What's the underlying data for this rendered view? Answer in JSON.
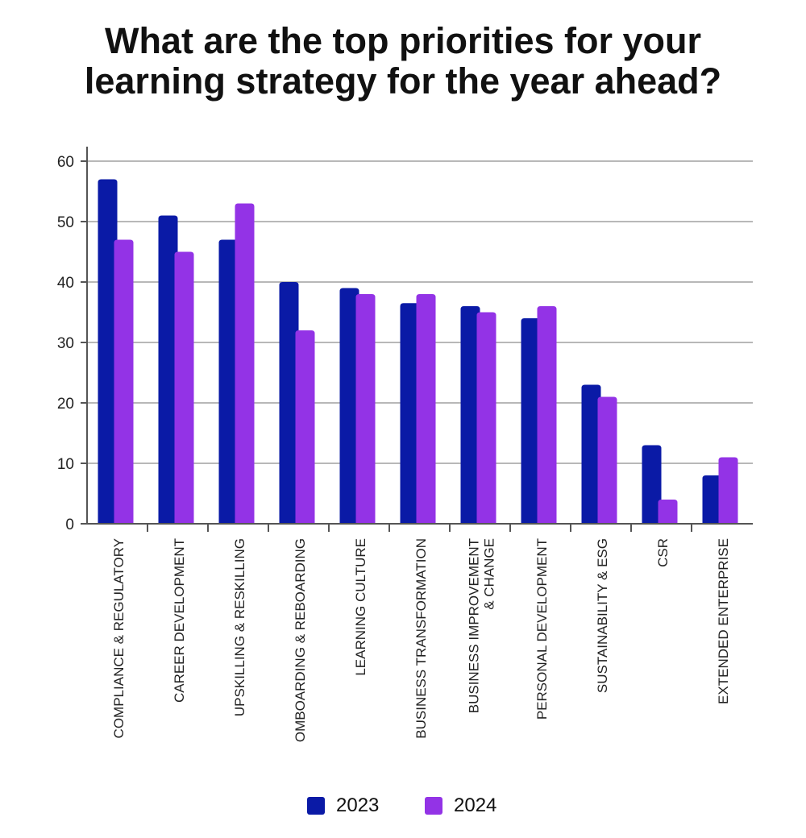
{
  "chart_data": {
    "type": "bar",
    "title": [
      "What are the top priorities for your",
      "learning strategy for the year ahead?"
    ],
    "xlabel": "",
    "ylabel": "",
    "ylim": [
      0,
      60
    ],
    "yticks": [
      0,
      10,
      20,
      30,
      40,
      50,
      60
    ],
    "grid": true,
    "legend_position": "bottom-center",
    "categories": [
      [
        "COMPLIANCE & REGULATORY"
      ],
      [
        "CAREER DEVELOPMENT"
      ],
      [
        "UPSKILLING & RESKILLING"
      ],
      [
        "OMBOARDING & REBOARDING"
      ],
      [
        "LEARNING CULTURE"
      ],
      [
        "BUSINESS TRANSFORMATION"
      ],
      [
        "BUSINESS IMPROVEMENT",
        "& CHANGE"
      ],
      [
        "PERSONAL DEVELOPMENT"
      ],
      [
        "SUSTAINABILITY & ESG"
      ],
      [
        "CSR"
      ],
      [
        "EXTENDED ENTERPRISE"
      ]
    ],
    "series": [
      {
        "name": "2023",
        "color": "#0a1aa6",
        "values": [
          57,
          51,
          47,
          40,
          39,
          36.5,
          36,
          34,
          23,
          13,
          8
        ]
      },
      {
        "name": "2024",
        "color": "#9333e6",
        "values": [
          47,
          45,
          53,
          32,
          38,
          38,
          35,
          36,
          21,
          4,
          11
        ]
      }
    ]
  }
}
